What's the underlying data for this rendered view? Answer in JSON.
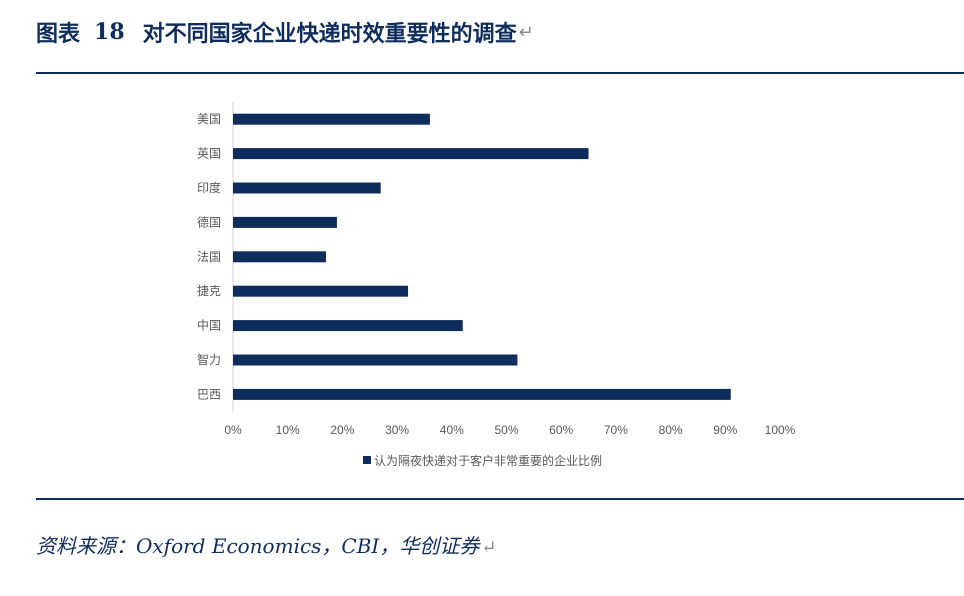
{
  "header": {
    "figure_label": "图表",
    "figure_number": "18",
    "title": "对不同国家企业快递时效重要性的调查",
    "para_mark": "↵"
  },
  "footer": {
    "source_text": "资料来源：Oxford Economics，CBI，华创证券",
    "para_mark": "↵"
  },
  "colors": {
    "accent": "#0e2c5c",
    "bar": "#0e2c5c",
    "axis_text": "#595959"
  },
  "chart_data": {
    "type": "bar",
    "orientation": "horizontal",
    "categories": [
      "美国",
      "英国",
      "印度",
      "德国",
      "法国",
      "捷克",
      "中国",
      "智力",
      "巴西"
    ],
    "series": [
      {
        "name": "认为隔夜快递对于客户非常重要的企业比例",
        "values": [
          36,
          65,
          27,
          19,
          17,
          32,
          42,
          52,
          91
        ]
      }
    ],
    "xlim": [
      0,
      100
    ],
    "xticks": [
      0,
      10,
      20,
      30,
      40,
      50,
      60,
      70,
      80,
      90,
      100
    ],
    "xtick_labels": [
      "0%",
      "10%",
      "20%",
      "30%",
      "40%",
      "50%",
      "60%",
      "70%",
      "80%",
      "90%",
      "100%"
    ],
    "unit": "%",
    "grid": false,
    "legend_position": "bottom"
  }
}
